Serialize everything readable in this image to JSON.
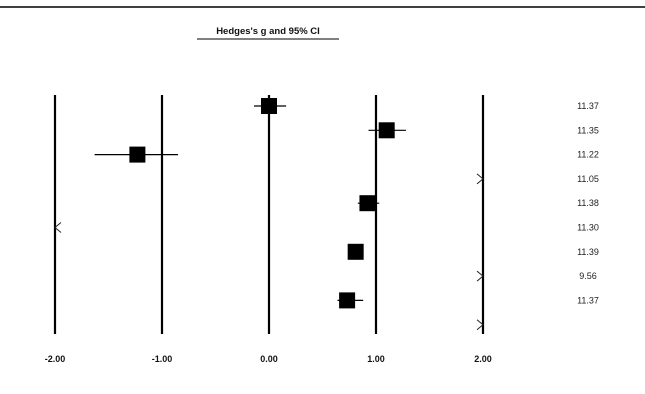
{
  "chart_data": {
    "type": "scatter",
    "title": "Hedges's g and 95% CI",
    "xlim": [
      -2,
      2
    ],
    "x_ticks": [
      -2,
      -1,
      0,
      1,
      2
    ],
    "x_tick_labels": [
      "-2.00",
      "-1.00",
      "0.00",
      "1.00",
      "2.00"
    ],
    "vertical_reference_lines_at": [
      -2,
      -1,
      0,
      1,
      2
    ],
    "rows": [
      {
        "label": "11.37",
        "g": 0.0,
        "ci": [
          -0.14,
          0.16
        ]
      },
      {
        "label": "11.35",
        "g": 1.1,
        "ci": [
          0.93,
          1.28
        ]
      },
      {
        "label": "11.22",
        "g": -1.23,
        "ci": [
          -1.63,
          -0.85
        ]
      },
      {
        "label": "11.05",
        "g": null,
        "ci": null,
        "arrow_at": 2.0
      },
      {
        "label": "11.38",
        "g": 0.92,
        "ci": [
          0.83,
          1.03
        ]
      },
      {
        "label": "11.30",
        "g": null,
        "ci": null,
        "arrow_at": -2.0
      },
      {
        "label": "11.39",
        "g": 0.81,
        "ci": [
          0.8,
          0.84
        ]
      },
      {
        "label": "9.56",
        "g": null,
        "ci": null,
        "arrow_at": 2.0
      },
      {
        "label": "11.37",
        "g": 0.73,
        "ci": [
          0.64,
          0.88
        ]
      },
      {
        "label": "",
        "g": null,
        "ci": null,
        "arrow_at": 2.0
      }
    ],
    "marker": "square",
    "marker_color": "#000000"
  }
}
